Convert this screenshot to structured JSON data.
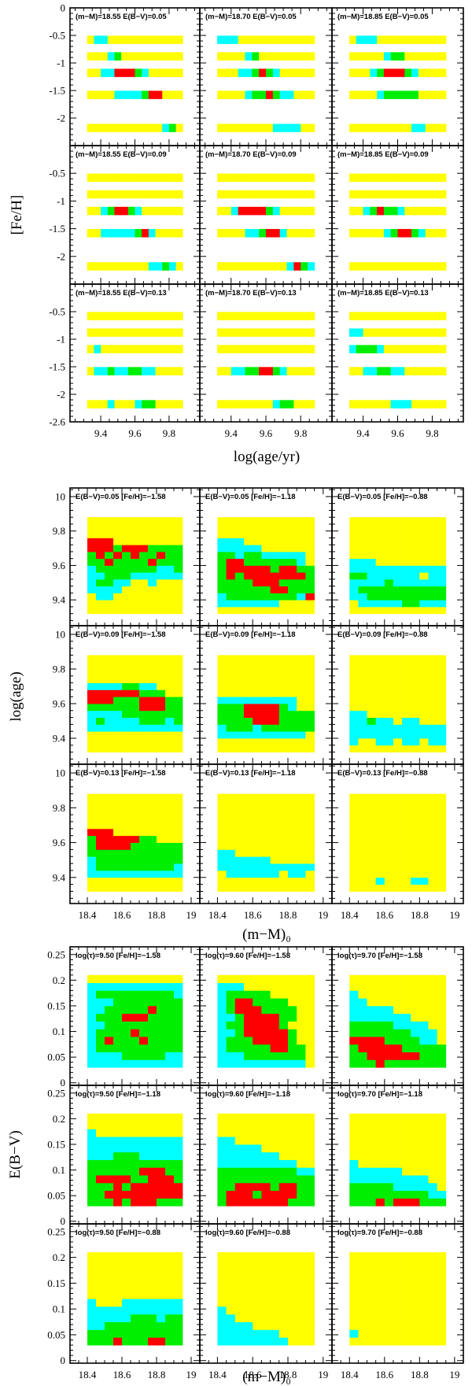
{
  "colors": {
    "level_0": "#ffff00",
    "level_1": "#00ffff",
    "level_2": "#00ee00",
    "level_3": "#ff0000",
    "frame": "#000000",
    "background": "#ffffff"
  },
  "chart_data": [
    {
      "id": "top",
      "type": "heatmap",
      "xlabel": "log(age/yr)",
      "ylabel": "[Fe/H]",
      "xlim": [
        9.22,
        9.98
      ],
      "ylim": [
        -2.5,
        0
      ],
      "x_ticks": [
        9.4,
        9.6,
        9.8
      ],
      "y_ticks": [
        0,
        -0.5,
        -1,
        -1.5,
        -2,
        -2.5
      ],
      "y_tick_labels": [
        "0",
        "-0.5",
        "-1",
        "-1.5",
        "-2",
        "-2.5"
      ],
      "y_tick_labels_inner": [
        "-2.6",
        "-0.5",
        "-1",
        "-1.5",
        "-2"
      ],
      "cell_x_edges": [
        9.32,
        9.36,
        9.4,
        9.44,
        9.48,
        9.52,
        9.56,
        9.6,
        9.64,
        9.68,
        9.72,
        9.76,
        9.8,
        9.84,
        9.88
      ],
      "rows_feh": [
        -0.58,
        -0.88,
        -1.18,
        -1.58,
        -2.18
      ],
      "panels": [
        {
          "label": "(m−M)=18.55  E(B−V)=0.05",
          "rows": [
            "01100000000000",
            "00012000000000",
            "00113332100000",
            "00001111233000",
            "00000000000120"
          ]
        },
        {
          "label": "(m−M)=18.70  E(B−V)=0.05",
          "rows": [
            "11100000000000",
            "00001200000000",
            "00011232100000",
            "00001223211000",
            "00000000111100"
          ]
        },
        {
          "label": "(m−M)=18.85  E(B−V)=0.05",
          "rows": [
            "01110000000000",
            "00000122000000",
            "00012333210000",
            "00001222220000",
            "00000000011000"
          ]
        },
        {
          "label": "(m−M)=18.55  E(B−V)=0.09",
          "rows": [
            "00000000000000",
            "00000000000000",
            "00123321000000",
            "00111112310000",
            "00000000011210"
          ]
        },
        {
          "label": "(m−M)=18.70  E(B−V)=0.09",
          "rows": [
            "00000000000000",
            "00000000000000",
            "00133332100000",
            "00001123310000",
            "00000000001321"
          ]
        },
        {
          "label": "(m−M)=18.85  E(B−V)=0.09",
          "rows": [
            "00000000000000",
            "00000000000000",
            "00123221000000",
            "00000123321000",
            "00000000000000"
          ]
        },
        {
          "label": "(m−M)=18.55  E(B−V)=0.13",
          "rows": [
            "00000000000000",
            "00000000000000",
            "01000000000000",
            "01121122110000",
            "00010001220000"
          ]
        },
        {
          "label": "(m−M)=18.70  E(B−V)=0.13",
          "rows": [
            "00000000000000",
            "00000000000000",
            "00000000000000",
            "00112233210000",
            "00000000122000"
          ]
        },
        {
          "label": "(m−M)=18.85  E(B−V)=0.13",
          "rows": [
            "00000000000000",
            "11000000000000",
            "12221000000000",
            "00112211000000",
            "00000011100000"
          ]
        }
      ]
    },
    {
      "id": "middle",
      "type": "heatmap",
      "xlabel": "(m−M)₀",
      "ylabel": "log(age)",
      "xlim": [
        18.3,
        19.05
      ],
      "ylim": [
        9.25,
        10.05
      ],
      "x_ticks": [
        18.4,
        18.6,
        18.8,
        19
      ],
      "y_ticks": [
        9.4,
        9.6,
        9.8,
        10
      ],
      "cell_x_start": 18.4,
      "cell_dx": 0.05,
      "cell_y_start": 9.32,
      "cell_dy": 0.04,
      "panels": [
        {
          "label": "E(B−V)=0.05  [Fe/H]=−1.58",
          "rows": [
            "00000000000",
            "00000000000",
            "01100000000",
            "11110000000",
            "12211001000",
            "11222111111",
            "12222222112",
            "22322223222",
            "23232322322",
            "33323332222",
            "33300000000",
            "00000000000",
            "00000000000",
            "00000000000"
          ]
        },
        {
          "label": "E(B−V)=0.05  [Fe/H]=−1.18",
          "rows": [
            "00000000000",
            "11111110000",
            "12222222213",
            "22222233222",
            "22223332222",
            "23233333332",
            "23333323322",
            "23322222210",
            "22122111110",
            "11111000000",
            "11100000000",
            "00000000000",
            "00000000000",
            "00000000000"
          ]
        },
        {
          "label": "E(B−V)=0.05  [Fe/H]=−0.88",
          "rows": [
            "00000000000",
            "01111122111",
            "11222222222",
            "12222222222",
            "11112111111",
            "22111111011",
            "11111111111",
            "11100000000",
            "00000000000",
            "00000000000",
            "00000000000",
            "00000000000",
            "00000000000",
            "00000000000"
          ]
        },
        {
          "label": "E(B−V)=0.09  [Fe/H]=−1.58",
          "rows": [
            "00000000000",
            "00000000000",
            "00000000000",
            "11111111111",
            "12111122212",
            "11112222222",
            "22222233322",
            "33322233322",
            "33333322200",
            "11112211000",
            "00000000000",
            "00000000000",
            "00000000000",
            "00000000000"
          ]
        },
        {
          "label": "E(B−V)=0.09  [Fe/H]=−1.18",
          "rows": [
            "00000000000",
            "00000000000",
            "11111111110",
            "12221222222",
            "22223332222",
            "22233332222",
            "22233332100",
            "11111111100",
            "00000000000",
            "00000000000",
            "00000000000",
            "00000000000",
            "00000000000",
            "00000000000"
          ]
        },
        {
          "label": "E(B−V)=0.09  [Fe/H]=−0.88",
          "rows": [
            "00000000000",
            "10011011011",
            "11111111111",
            "11111111111",
            "11211011000",
            "11000000000",
            "00000000000",
            "00000000000",
            "00000000000",
            "00000000000",
            "00000000000",
            "00000000000",
            "00000000000",
            "00000000000"
          ]
        },
        {
          "label": "E(B−V)=0.13  [Fe/H]=−1.58",
          "rows": [
            "00000000000",
            "00000000000",
            "11111111111",
            "12222222221",
            "12222222222",
            "22222222222",
            "23333222222",
            "23333322000",
            "33300000000",
            "00000000000",
            "00000000000",
            "00000000000",
            "00000000000",
            "00000000000"
          ]
        },
        {
          "label": "E(B−V)=0.13  [Fe/H]=−1.18",
          "rows": [
            "00000000000",
            "00000000000",
            "01111110110",
            "11111111111",
            "11111100000",
            "11000000000",
            "00000000000",
            "00000000000",
            "00000000000",
            "00000000000",
            "00000000000",
            "00000000000",
            "00000000000",
            "00000000000"
          ]
        },
        {
          "label": "E(B−V)=0.13  [Fe/H]=−0.88",
          "rows": [
            "00000000000",
            "00010001100",
            "00000000000",
            "00000000000",
            "00000000000",
            "00000000000",
            "00000000000",
            "00000000000",
            "00000000000",
            "00000000000",
            "00000000000",
            "00000000000",
            "00000000000",
            "00000000000"
          ]
        }
      ]
    },
    {
      "id": "bottom",
      "type": "heatmap",
      "xlabel": "(m−M)₀",
      "ylabel": "E(B−V)",
      "xlim": [
        18.3,
        19.05
      ],
      "ylim": [
        -0.005,
        0.265
      ],
      "x_ticks": [
        18.4,
        18.6,
        18.8,
        19
      ],
      "y_ticks": [
        0,
        0.05,
        0.1,
        0.15,
        0.2,
        0.25
      ],
      "cell_x_start": 18.4,
      "cell_dx": 0.05,
      "cell_y_start": 0.03,
      "cell_dy": 0.015,
      "panels": [
        {
          "label": "log(τ)=9.50  [Fe/H]=−1.58",
          "rows": [
            "11111111111",
            "11112222211",
            "12222222222",
            "12322232222",
            "12222322222",
            "11222222222",
            "12223332222",
            "11222223222",
            "11122222222",
            "12222222221",
            "11111111111",
            "00000000000"
          ]
        },
        {
          "label": "log(τ)=9.60  [Fe/H]=−1.58",
          "rows": [
            "11111111110",
            "11122222220",
            "12222233220",
            "12223333200",
            "11233333200",
            "12233332000",
            "11233332200",
            "12333222200",
            "12332222000",
            "12222200000",
            "11100000000",
            "00000000000"
          ]
        },
        {
          "label": "log(τ)=9.70  [Fe/H]=−1.58",
          "rows": [
            "22232222222",
            "22333333222",
            "23333322222",
            "33332222110",
            "22222221110",
            "22222111100",
            "11111110000",
            "11111000000",
            "11000000000",
            "10000000000",
            "00000000000",
            "00000000000"
          ]
        },
        {
          "label": "log(τ)=9.50  [Fe/H]=−1.18",
          "rows": [
            "22232333222",
            "22333333333",
            "22232333333",
            "23333223332",
            "22222233322",
            "22222222222",
            "11122211111",
            "11111111111",
            "11111111111",
            "10000000000",
            "00000000000",
            "00000000000"
          ]
        },
        {
          "label": "log(τ)=9.60  [Fe/H]=−1.18",
          "rows": [
            "23333333222",
            "23332333322",
            "22333323322",
            "22222222222",
            "22222222211",
            "11111111100",
            "11111110000",
            "11111000000",
            "11000000000",
            "00000000000",
            "00000000000",
            "00000000000"
          ]
        },
        {
          "label": "log(τ)=9.70  [Fe/H]=−1.18",
          "rows": [
            "22232333222",
            "22222222211",
            "22222111110",
            "11111111100",
            "11111100000",
            "10000000000",
            "00000000000",
            "00000000000",
            "00000000000",
            "00000000000",
            "00000000000",
            "00000000000"
          ]
        },
        {
          "label": "log(τ)=9.50  [Fe/H]=−0.88",
          "rows": [
            "22232223322",
            "22222222222",
            "11222222222",
            "11111222122",
            "11111111111",
            "10001111111",
            "00000000000",
            "00000000000",
            "00000000000",
            "00000000000",
            "00000000000",
            "00000000000"
          ]
        },
        {
          "label": "log(τ)=9.60  [Fe/H]=−0.88",
          "rows": [
            "11111111000",
            "11111110000",
            "11110000000",
            "11000000000",
            "10000000000",
            "00000000000",
            "00000000000",
            "00000000000",
            "00000000000",
            "00000000000",
            "00000000000",
            "00000000000"
          ]
        },
        {
          "label": "log(τ)=9.70  [Fe/H]=−0.88",
          "rows": [
            "00000000000",
            "10000000000",
            "00000000000",
            "00000000000",
            "00000000000",
            "00000000000",
            "00000000000",
            "00000000000",
            "00000000000",
            "00000000000",
            "00000000000",
            "00000000000"
          ]
        }
      ]
    }
  ]
}
